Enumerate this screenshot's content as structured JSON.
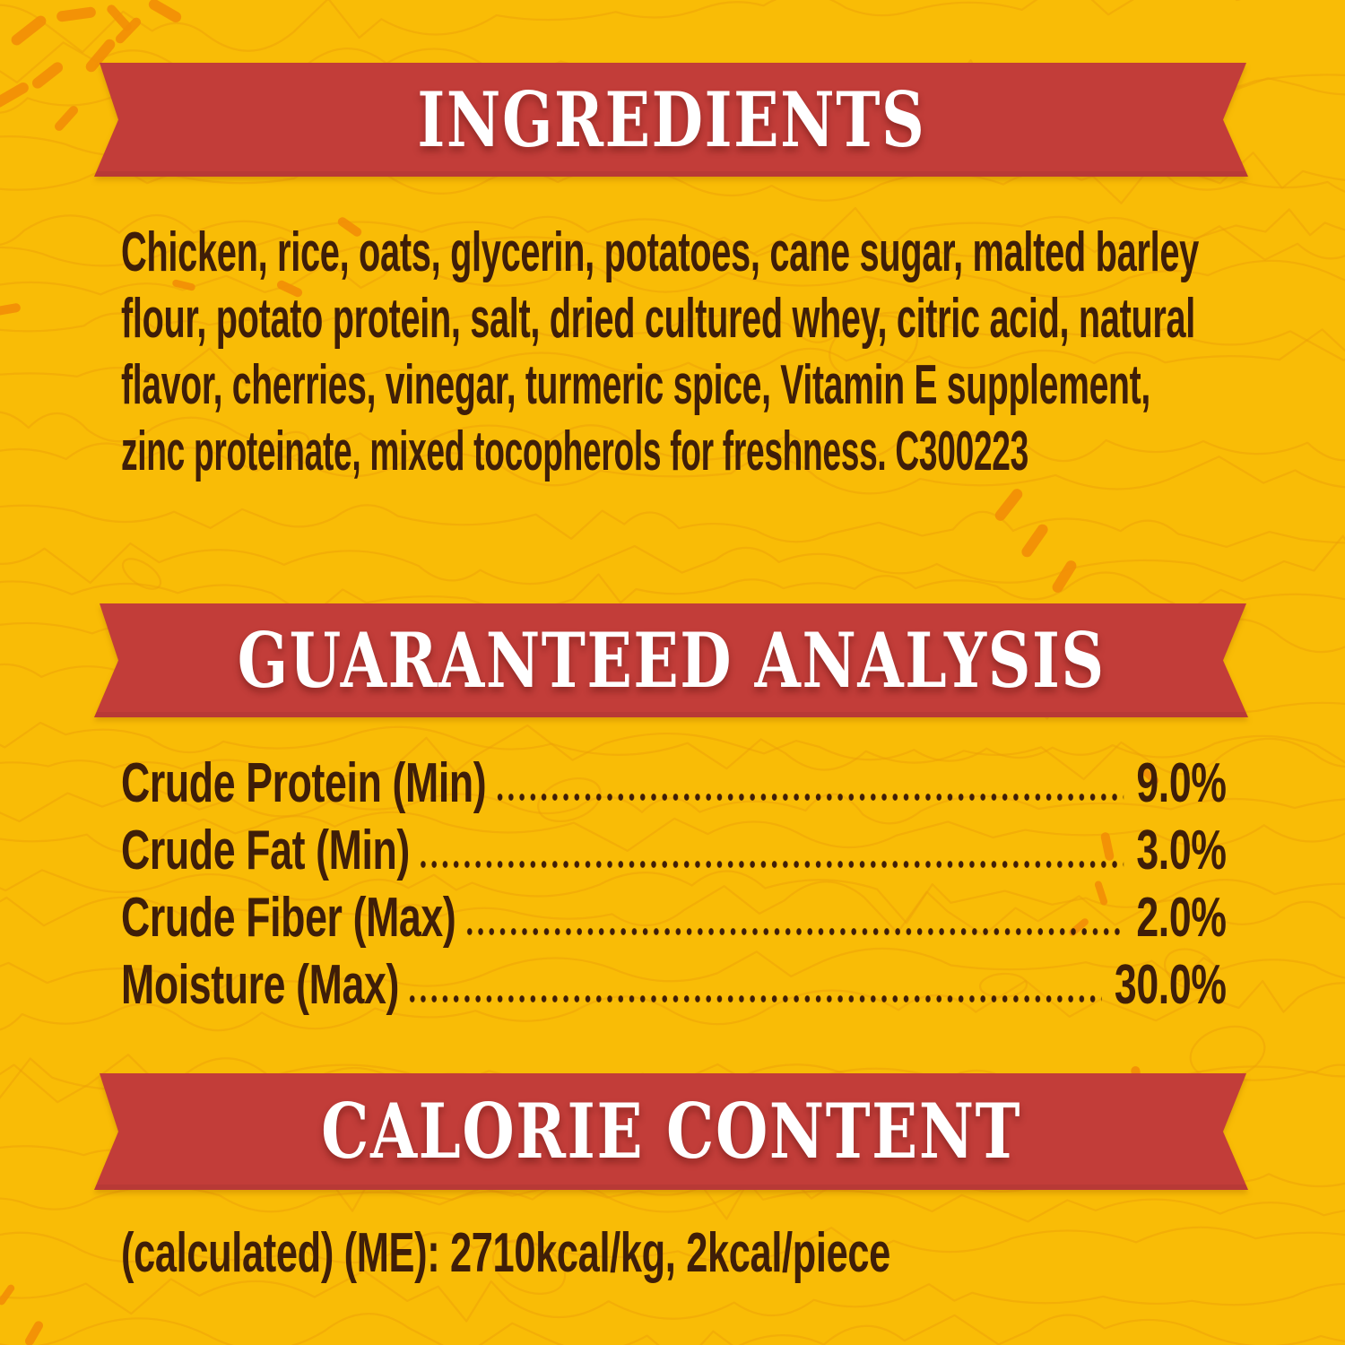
{
  "colors": {
    "background": "#F9BC06",
    "banner": "#C23D39",
    "banner_text": "#FFFFFF",
    "body_text": "#3F1E08",
    "contour": "#ED9F08",
    "dash": "#F28E07"
  },
  "ingredients": {
    "title": "INGREDIENTS",
    "lines": [
      "Chicken, rice, oats, glycerin, potatoes, cane sugar, malted barley",
      "flour, potato protein, salt, dried cultured whey, citric acid, natural",
      "flavor, cherries, vinegar, turmeric spice, Vitamin E supplement,",
      "zinc proteinate, mixed tocopherols for freshness. C300223"
    ]
  },
  "guaranteed_analysis": {
    "title": "GUARANTEED ANALYSIS",
    "rows": [
      {
        "label": "Crude Protein (Min)",
        "value": "9.0%"
      },
      {
        "label": "Crude Fat (Min)",
        "value": "3.0%"
      },
      {
        "label": "Crude Fiber (Max)",
        "value": "2.0%"
      },
      {
        "label": "Moisture (Max)",
        "value": "30.0%"
      }
    ]
  },
  "calorie_content": {
    "title": "CALORIE CONTENT",
    "text": "(calculated) (ME): 2710kcal/kg, 2kcal/piece"
  }
}
